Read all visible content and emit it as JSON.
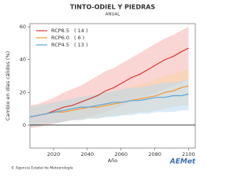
{
  "chart_data": {
    "type": "line",
    "title": "TINTO-ODIEL Y PIEDRAS",
    "subtitle": "ANUAL",
    "y_label": "Cambio en días cálidos (%)",
    "x_label": "Año",
    "x": [
      2006,
      2011,
      2016,
      2021,
      2026,
      2031,
      2036,
      2041,
      2046,
      2051,
      2056,
      2061,
      2066,
      2071,
      2076,
      2081,
      2086,
      2091,
      2096,
      2100
    ],
    "xlim": [
      2006,
      2104
    ],
    "xticks": [
      2020,
      2040,
      2060,
      2080,
      2100
    ],
    "ylim": [
      -14,
      62
    ],
    "yticks": [
      0,
      20,
      40,
      60
    ],
    "series": [
      {
        "name": "RCP8.5",
        "members": "( 14 )",
        "color": "#d9382f",
        "band_color": "#f4b3ae",
        "values": [
          5,
          6,
          7,
          9,
          11,
          12,
          14,
          16,
          18,
          21,
          23,
          26,
          29,
          31,
          34,
          37,
          40,
          42,
          45,
          47
        ],
        "lower": [
          -2,
          -1,
          0,
          1,
          2,
          3,
          4,
          5,
          7,
          8,
          10,
          12,
          14,
          16,
          18,
          20,
          22,
          24,
          26,
          28
        ],
        "upper": [
          12,
          13,
          15,
          17,
          20,
          22,
          24,
          27,
          30,
          33,
          35,
          38,
          41,
          44,
          47,
          50,
          53,
          55,
          58,
          60
        ]
      },
      {
        "name": "RCP6.0",
        "members": "(  6 )",
        "color": "#f29a2e",
        "band_color": "#f9d3a4",
        "values": [
          5,
          6,
          7,
          8,
          8,
          9,
          10,
          11,
          11,
          12,
          13,
          14,
          15,
          16,
          17,
          18,
          20,
          21,
          23,
          24
        ],
        "lower": [
          0,
          0,
          1,
          2,
          2,
          3,
          3,
          4,
          4,
          5,
          6,
          6,
          7,
          8,
          8,
          9,
          10,
          11,
          12,
          12
        ],
        "upper": [
          11,
          12,
          13,
          14,
          15,
          16,
          17,
          18,
          19,
          20,
          21,
          22,
          24,
          25,
          26,
          28,
          30,
          31,
          33,
          34
        ]
      },
      {
        "name": "RCP4.5",
        "members": "( 13 )",
        "color": "#5aa8df",
        "band_color": "#b9daf2",
        "values": [
          5,
          6,
          7,
          8,
          9,
          10,
          11,
          11,
          12,
          13,
          14,
          14,
          15,
          15,
          16,
          17,
          17,
          18,
          18,
          19
        ],
        "lower": [
          -1,
          0,
          1,
          1,
          2,
          3,
          3,
          4,
          4,
          5,
          5,
          6,
          6,
          7,
          7,
          8,
          8,
          8,
          9,
          9
        ],
        "upper": [
          11,
          12,
          13,
          14,
          15,
          16,
          17,
          18,
          19,
          20,
          21,
          22,
          23,
          23,
          24,
          25,
          26,
          26,
          27,
          28
        ]
      }
    ],
    "zero_line": true,
    "legend": "top-left"
  },
  "footer": "© Agencia Estatal de Meteorología",
  "logo": "AEMet"
}
